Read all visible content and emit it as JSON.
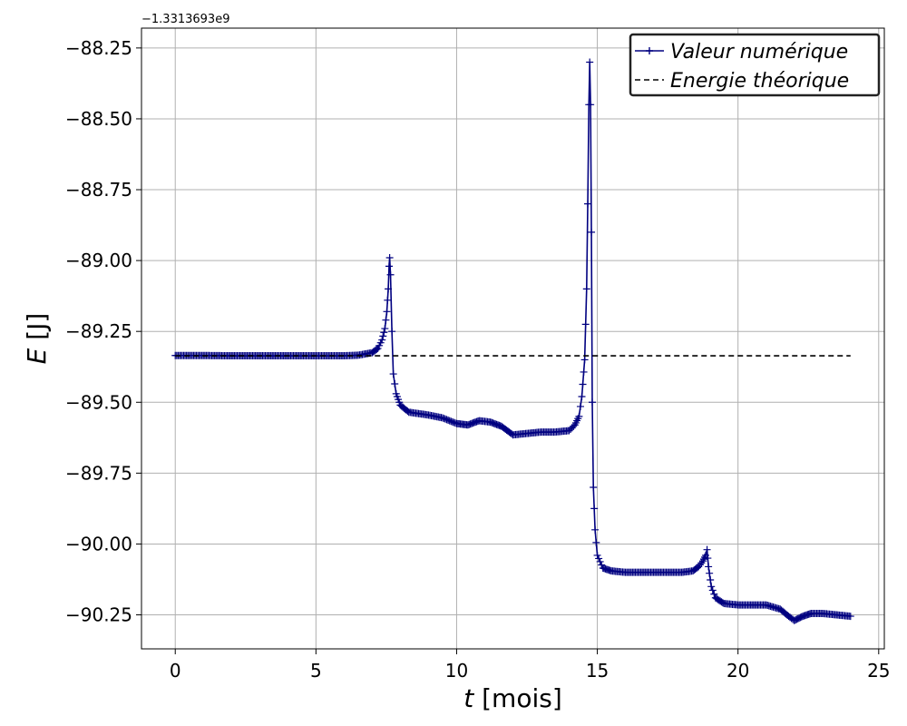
{
  "chart_data": {
    "type": "line",
    "xlabel_var": "t",
    "xlabel_unit": " [mois]",
    "ylabel_var": "E",
    "ylabel_unit": " [J]",
    "offset_text": "−1.3313693e9",
    "xlim": [
      -1.2,
      25.2
    ],
    "ylim": [
      -90.37,
      -88.18
    ],
    "xticks": [
      0,
      5,
      10,
      15,
      20,
      25
    ],
    "yticks": [
      -88.25,
      -88.5,
      -88.75,
      -89.0,
      -89.25,
      -89.5,
      -89.75,
      -90.0,
      -90.25
    ],
    "xtick_labels": [
      "0",
      "5",
      "10",
      "15",
      "20",
      "25"
    ],
    "ytick_labels": [
      "−88.25",
      "−88.50",
      "−88.75",
      "−89.00",
      "−89.25",
      "−89.50",
      "−89.75",
      "−90.00",
      "−90.25"
    ],
    "grid": true,
    "legend_position": "top-right",
    "series": [
      {
        "name": "Valeur numérique",
        "color": "#000080",
        "style": "solid",
        "marker": "+",
        "points": [
          [
            0,
            -89.335
          ],
          [
            1,
            -89.335
          ],
          [
            2,
            -89.336
          ],
          [
            3,
            -89.336
          ],
          [
            4,
            -89.336
          ],
          [
            5,
            -89.336
          ],
          [
            6,
            -89.336
          ],
          [
            6.5,
            -89.334
          ],
          [
            7,
            -89.325
          ],
          [
            7.2,
            -89.31
          ],
          [
            7.35,
            -89.28
          ],
          [
            7.45,
            -89.24
          ],
          [
            7.52,
            -89.18
          ],
          [
            7.57,
            -89.1
          ],
          [
            7.6,
            -89.02
          ],
          [
            7.62,
            -88.99
          ],
          [
            7.65,
            -89.05
          ],
          [
            7.7,
            -89.25
          ],
          [
            7.75,
            -89.4
          ],
          [
            7.85,
            -89.47
          ],
          [
            8.0,
            -89.51
          ],
          [
            8.3,
            -89.535
          ],
          [
            9.0,
            -89.545
          ],
          [
            9.5,
            -89.555
          ],
          [
            10.0,
            -89.575
          ],
          [
            10.4,
            -89.58
          ],
          [
            10.8,
            -89.565
          ],
          [
            11.2,
            -89.57
          ],
          [
            11.6,
            -89.585
          ],
          [
            12.0,
            -89.615
          ],
          [
            12.5,
            -89.61
          ],
          [
            13.0,
            -89.605
          ],
          [
            13.5,
            -89.605
          ],
          [
            14.0,
            -89.6
          ],
          [
            14.2,
            -89.58
          ],
          [
            14.35,
            -89.55
          ],
          [
            14.45,
            -89.48
          ],
          [
            14.55,
            -89.35
          ],
          [
            14.62,
            -89.1
          ],
          [
            14.66,
            -88.8
          ],
          [
            14.7,
            -88.45
          ],
          [
            14.73,
            -88.3
          ],
          [
            14.76,
            -88.45
          ],
          [
            14.79,
            -88.9
          ],
          [
            14.82,
            -89.5
          ],
          [
            14.86,
            -89.8
          ],
          [
            14.92,
            -89.95
          ],
          [
            15.0,
            -90.04
          ],
          [
            15.2,
            -90.085
          ],
          [
            15.5,
            -90.095
          ],
          [
            16.0,
            -90.1
          ],
          [
            17.0,
            -90.1
          ],
          [
            18.0,
            -90.1
          ],
          [
            18.4,
            -90.095
          ],
          [
            18.6,
            -90.08
          ],
          [
            18.75,
            -90.06
          ],
          [
            18.85,
            -90.04
          ],
          [
            18.9,
            -90.02
          ],
          [
            18.95,
            -90.08
          ],
          [
            19.05,
            -90.15
          ],
          [
            19.2,
            -90.19
          ],
          [
            19.5,
            -90.21
          ],
          [
            20.0,
            -90.215
          ],
          [
            21.0,
            -90.215
          ],
          [
            21.5,
            -90.23
          ],
          [
            21.8,
            -90.255
          ],
          [
            22.0,
            -90.27
          ],
          [
            22.3,
            -90.255
          ],
          [
            22.6,
            -90.245
          ],
          [
            23.0,
            -90.245
          ],
          [
            23.5,
            -90.25
          ],
          [
            24.0,
            -90.255
          ]
        ]
      },
      {
        "name": "Energie théorique",
        "color": "#000000",
        "style": "dashed",
        "marker": "none",
        "points": [
          [
            0,
            -89.336
          ],
          [
            24,
            -89.336
          ]
        ]
      }
    ]
  }
}
